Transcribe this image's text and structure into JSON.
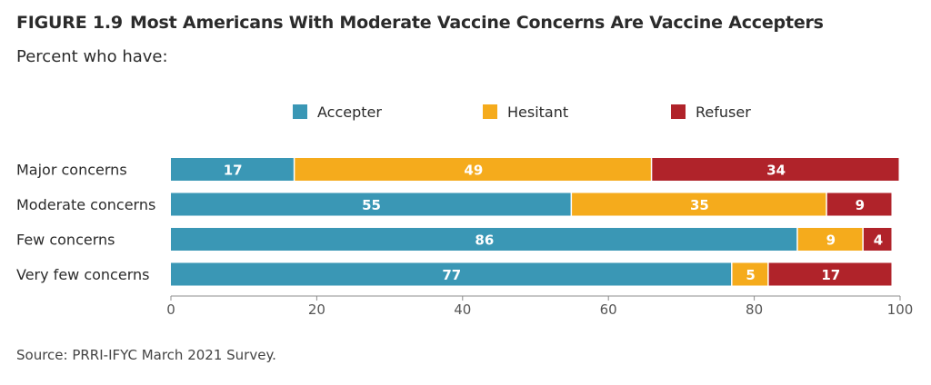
{
  "header": {
    "figure_label": "FIGURE 1.9",
    "title": "Most Americans With Moderate Vaccine Concerns Are Vaccine Accepters",
    "subtitle": "Percent who have:"
  },
  "footer": {
    "source": "Source: PRRI-IFYC March 2021 Survey."
  },
  "chart_data": {
    "type": "bar",
    "orientation": "horizontal",
    "stacked": true,
    "title": "Most Americans With Moderate Vaccine Concerns Are Vaccine Accepters",
    "subtitle": "Percent who have:",
    "categories": [
      "Major concerns",
      "Moderate concerns",
      "Few concerns",
      "Very few concerns"
    ],
    "series": [
      {
        "name": "Accepter",
        "color": "#3a97b5",
        "values": [
          17,
          55,
          86,
          77
        ]
      },
      {
        "name": "Hesitant",
        "color": "#f5ab1c",
        "values": [
          49,
          35,
          9,
          5
        ]
      },
      {
        "name": "Refuser",
        "color": "#b0232a",
        "values": [
          34,
          9,
          4,
          17
        ]
      }
    ],
    "xlim": [
      0,
      100
    ],
    "xticks": [
      0,
      20,
      40,
      60,
      80,
      100
    ],
    "xlabel": "",
    "ylabel": "",
    "grid": false,
    "legend_position": "top-center",
    "data_labels": true
  }
}
